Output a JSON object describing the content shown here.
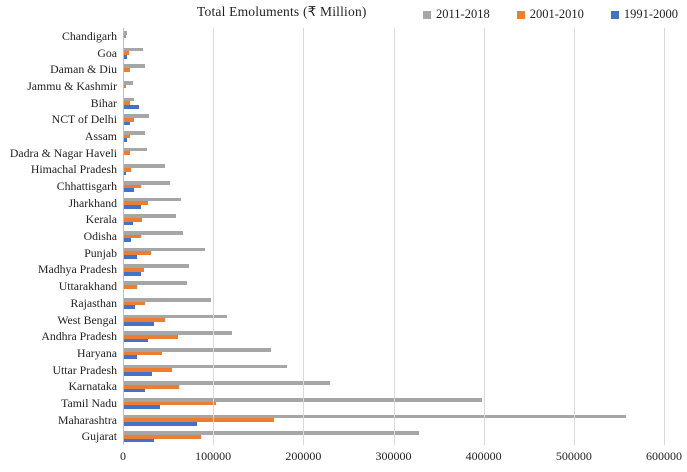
{
  "chart_data": {
    "type": "bar",
    "orientation": "horizontal",
    "title": "Total Emoluments (₹ Million)",
    "xlabel": "",
    "ylabel": "",
    "xlim": [
      0,
      600000
    ],
    "x_ticks": [
      0,
      100000,
      200000,
      300000,
      400000,
      500000,
      600000
    ],
    "grid": true,
    "legend_position": "top-right",
    "categories": [
      "Chandigarh",
      "Goa",
      "Daman & Diu",
      "Jammu & Kashmir",
      "Bihar",
      "NCT of Delhi",
      "Assam",
      "Dadra & Nagar Haveli",
      "Himachal Pradesh",
      "Chhattisgarh",
      "Jharkhand",
      "Kerala",
      "Odisha",
      "Punjab",
      "Madhya Pradesh",
      "Uttarakhand",
      "Rajasthan",
      "West Bengal",
      "Andhra Pradesh",
      "Haryana",
      "Uttar Pradesh",
      "Karnataka",
      "Tamil Nadu",
      "Maharashtra",
      "Gujarat"
    ],
    "series": [
      {
        "name": "2011-2018",
        "color": "#A6A6A6",
        "values": [
          4000,
          22500,
          24000,
          11000,
          12000,
          29000,
          24000,
          26500,
          47000,
          52000,
          64000,
          59000,
          66000,
          91000,
          73000,
          71000,
          98000,
          115000,
          121000,
          164000,
          182000,
          230000,
          398000,
          558000,
          328000
        ]
      },
      {
        "name": "2001-2010",
        "color": "#ED7D31",
        "values": [
          3000,
          7000,
          7500,
          3000,
          8000,
          12000,
          8000,
          8000,
          8500,
          19500,
          28000,
          21500,
          19500,
          30500,
          23500,
          15000,
          24000,
          47000,
          61000,
          43000,
          54000,
          62000,
          103000,
          167000,
          86000
        ]
      },
      {
        "name": "1991-2000",
        "color": "#4472C4",
        "values": [
          800,
          4500,
          700,
          500,
          18000,
          7500,
          4000,
          1000,
          3500,
          12000,
          20500,
          11500,
          8500,
          15500,
          19500,
          1500,
          13000,
          34000,
          27500,
          16000,
          32000,
          24000,
          41000,
          82000,
          34000
        ]
      }
    ],
    "colors": {
      "gridline": "#D9D9D9",
      "axis_line": "#BFBFBF",
      "text": "#1F1F1F"
    }
  }
}
